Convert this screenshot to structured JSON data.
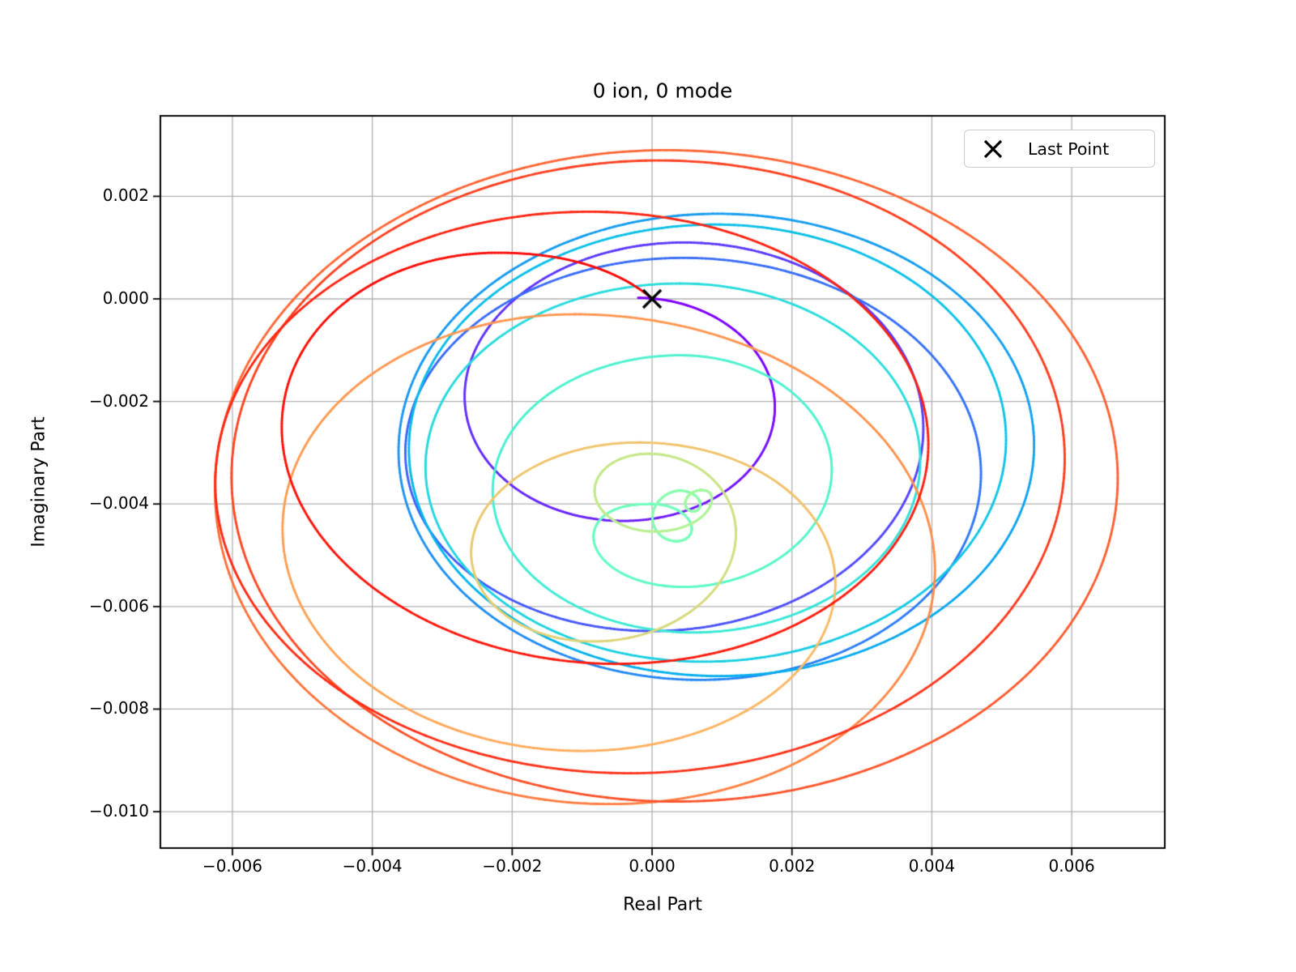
{
  "title": "0 ion, 0 mode",
  "legend": {
    "label": "Last Point",
    "marker": "x",
    "marker_color": "#000000"
  },
  "axes": {
    "xlabel": "Real Part",
    "ylabel": "Imaginary Part",
    "xlim": [
      -0.00703,
      0.00733
    ],
    "ylim": [
      -0.01071,
      0.00357
    ],
    "xticks": [
      -0.006,
      -0.004,
      -0.002,
      0.0,
      0.002,
      0.004,
      0.006
    ],
    "xtick_labels": [
      "−0.006",
      "−0.004",
      "−0.002",
      "0.000",
      "0.002",
      "0.004",
      "0.006"
    ],
    "yticks": [
      0.002,
      0.0,
      -0.002,
      -0.004,
      -0.006,
      -0.008,
      -0.01
    ],
    "ytick_labels": [
      "0.002",
      "0.000",
      "−0.002",
      "−0.004",
      "−0.006",
      "−0.008",
      "−0.010"
    ],
    "grid": true,
    "grid_color": "#b0b0b0",
    "spine_color": "#000000",
    "tick_color": "#000000",
    "background": "#ffffff"
  },
  "chart_data": {
    "type": "line",
    "title": "0 ion, 0 mode",
    "xlabel": "Real Part",
    "ylabel": "Imaginary Part",
    "xlim": [
      -0.00703,
      0.00733
    ],
    "ylim": [
      -0.01071,
      0.00357
    ],
    "legend_position": "upper right",
    "grid": true,
    "colormap": "rainbow",
    "line_width": 2.8,
    "theta_start_deg": 90,
    "direction": "clockwise",
    "total_revolutions": 16.137,
    "description": "Complex phase-space trajectory: a sequence of nested loops whose center, radius and rainbow color evolve in time, starting and ending near the origin.",
    "loops": [
      {
        "rev": 0,
        "cx": -0.0002,
        "cy": -0.0015,
        "r": 0.00152,
        "ct": 0.0
      },
      {
        "rev": 1,
        "cx": 0.00045,
        "cy": -0.0022,
        "r": 0.0033,
        "ct": 0.07
      },
      {
        "rev": 2,
        "cx": 0.00045,
        "cy": -0.0033,
        "r": 0.0041,
        "ct": 0.14
      },
      {
        "rev": 3,
        "cx": 0.00094,
        "cy": -0.0029,
        "r": 0.00456,
        "ct": 0.21
      },
      {
        "rev": 4,
        "cx": 0.0009,
        "cy": -0.0029,
        "r": 0.00435,
        "ct": 0.27
      },
      {
        "rev": 5,
        "cx": 0.0004,
        "cy": -0.0033,
        "r": 0.0036,
        "ct": 0.33
      },
      {
        "rev": 6,
        "cx": 0.0004,
        "cy": -0.0036,
        "r": 0.0025,
        "ct": 0.4
      },
      {
        "rev": 7,
        "cx": 0.0,
        "cy": -0.00455,
        "r": 0.00055,
        "ct": 0.47
      },
      {
        "rev": 8,
        "cx": 0.0004,
        "cy": -0.004,
        "r": 0.00026,
        "ct": 0.52
      },
      {
        "rev": 9,
        "cx": 0.0007,
        "cy": -0.00387,
        "r": 0.00014,
        "ct": 0.57
      },
      {
        "rev": 10,
        "cx": -5e-05,
        "cy": -0.004,
        "r": 0.00098,
        "ct": 0.64
      },
      {
        "rev": 11,
        "cx": -0.0002,
        "cy": -0.00545,
        "r": 0.00265,
        "ct": 0.72
      },
      {
        "rev": 12,
        "cx": -0.0011,
        "cy": -0.0049,
        "r": 0.0046,
        "ct": 0.8
      },
      {
        "rev": 13,
        "cx": 0.0002,
        "cy": -0.00365,
        "r": 0.00655,
        "ct": 0.87
      },
      {
        "rev": 14,
        "cx": 0.0001,
        "cy": -0.00335,
        "r": 0.00605,
        "ct": 0.92
      },
      {
        "rev": 15,
        "cx": -0.0009,
        "cy": -0.0037,
        "r": 0.0054,
        "ct": 0.955
      },
      {
        "rev": 16,
        "cx": -0.0022,
        "cy": -0.002,
        "r": 0.0029,
        "ct": 0.985
      },
      {
        "rev": 16.137,
        "cx": -0.0022,
        "cy": -0.0019,
        "r": 0.00291,
        "ct": 1.0
      }
    ],
    "last_point": {
      "x": 0.0,
      "y": 0.0,
      "marker": "x",
      "color": "#000000",
      "size": 22
    }
  }
}
